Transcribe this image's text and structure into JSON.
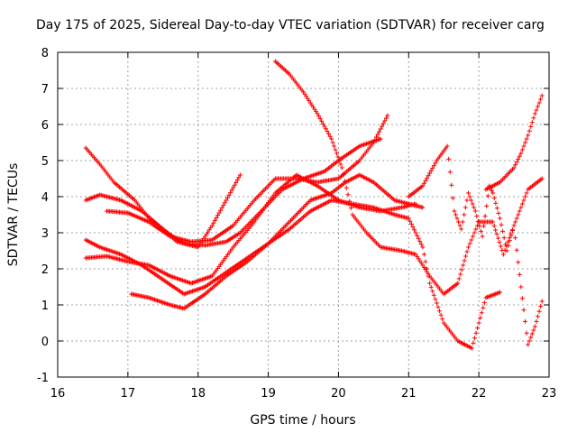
{
  "chart_data": {
    "type": "scatter",
    "title": "Day 175 of 2025, Sidereal Day-to-day VTEC variation (SDTVAR) for receiver carg",
    "xlabel": "GPS time / hours",
    "ylabel": "SDTVAR / TECUs",
    "xlim": [
      16,
      23
    ],
    "ylim": [
      -1,
      8
    ],
    "xticks": [
      16,
      17,
      18,
      19,
      20,
      21,
      22,
      23
    ],
    "yticks": [
      -1,
      0,
      1,
      2,
      3,
      4,
      5,
      6,
      7,
      8
    ],
    "grid": true,
    "marker": "+",
    "color": "#ff0000",
    "series": [
      {
        "name": "s1",
        "x": [
          16.4,
          16.6,
          16.8,
          17.1,
          17.3,
          17.6,
          17.8,
          18.1,
          18.4,
          18.6,
          18.9,
          19.2,
          19.5,
          19.8,
          20.0,
          20.3,
          20.6
        ],
        "y": [
          5.35,
          4.9,
          4.4,
          3.9,
          3.4,
          2.95,
          2.7,
          2.65,
          2.75,
          3.0,
          3.6,
          4.2,
          4.5,
          4.7,
          5.0,
          5.4,
          5.6
        ]
      },
      {
        "name": "s2",
        "x": [
          16.4,
          16.6,
          16.9,
          17.2,
          17.5,
          17.7,
          18.0,
          18.2,
          18.4,
          18.6
        ],
        "y": [
          3.9,
          4.05,
          3.9,
          3.6,
          3.1,
          2.75,
          2.6,
          3.2,
          3.9,
          4.6
        ]
      },
      {
        "name": "s3",
        "x": [
          16.7,
          17.0,
          17.3,
          17.6,
          17.9,
          18.2,
          18.5,
          18.8,
          19.1,
          19.4,
          19.7,
          20.0,
          20.3,
          20.5,
          20.7
        ],
        "y": [
          3.6,
          3.55,
          3.3,
          2.9,
          2.75,
          2.8,
          3.2,
          3.9,
          4.5,
          4.5,
          4.4,
          4.5,
          5.0,
          5.5,
          6.25
        ]
      },
      {
        "name": "s4",
        "x": [
          16.4,
          16.7,
          17.0,
          17.3,
          17.6,
          17.9,
          18.2,
          18.5,
          18.8,
          19.1,
          19.4,
          19.7,
          20.0,
          20.3,
          20.6,
          20.9,
          21.1
        ],
        "y": [
          2.3,
          2.35,
          2.2,
          2.1,
          1.8,
          1.6,
          1.8,
          2.6,
          3.3,
          4.1,
          4.6,
          4.3,
          3.9,
          3.7,
          3.6,
          3.7,
          3.8
        ]
      },
      {
        "name": "s5",
        "x": [
          16.4,
          16.6,
          16.9,
          17.2,
          17.5,
          17.8,
          18.1,
          18.4,
          18.7,
          19.0,
          19.3,
          19.6,
          19.9,
          20.2,
          20.5,
          20.8,
          21.0,
          21.2,
          21.3,
          21.5,
          21.7,
          21.9,
          22.1,
          22.3
        ],
        "y": [
          2.8,
          2.6,
          2.4,
          2.1,
          1.7,
          1.3,
          1.5,
          1.9,
          2.3,
          2.7,
          3.1,
          3.6,
          3.9,
          3.8,
          3.7,
          3.5,
          3.4,
          2.6,
          1.6,
          0.5,
          0.0,
          -0.2,
          1.2,
          1.35
        ]
      },
      {
        "name": "s6",
        "x": [
          17.05,
          17.3,
          17.6,
          17.8,
          18.1,
          18.4,
          18.7,
          19.0,
          19.3,
          19.6,
          19.9,
          20.1,
          20.3,
          20.5,
          20.8,
          21.0,
          21.2
        ],
        "y": [
          1.3,
          1.2,
          1.0,
          0.9,
          1.3,
          1.8,
          2.2,
          2.7,
          3.3,
          3.9,
          4.1,
          4.4,
          4.6,
          4.4,
          3.9,
          3.8,
          3.7
        ]
      },
      {
        "name": "s7",
        "x": [
          19.1,
          19.3,
          19.5,
          19.7,
          19.9,
          20.05,
          20.2,
          20.4,
          20.6,
          20.9,
          21.1,
          21.3,
          21.5,
          21.7,
          21.85,
          22.0,
          22.2,
          22.35,
          22.5,
          22.7,
          22.9
        ],
        "y": [
          7.75,
          7.4,
          6.9,
          6.3,
          5.6,
          4.8,
          3.5,
          3.0,
          2.6,
          2.5,
          2.4,
          1.8,
          1.3,
          1.6,
          2.6,
          3.3,
          3.3,
          2.4,
          3.2,
          4.2,
          4.5
        ]
      },
      {
        "name": "s8",
        "x": [
          21.0,
          21.2,
          21.4,
          21.55,
          21.65,
          21.75,
          21.85,
          21.95,
          22.05,
          22.15,
          22.2,
          22.3,
          22.4,
          22.5,
          22.6,
          22.7,
          22.8,
          22.9
        ],
        "y": [
          4.0,
          4.3,
          5.0,
          5.4,
          3.6,
          3.1,
          4.1,
          3.6,
          2.9,
          4.3,
          4.1,
          3.4,
          2.5,
          3.2,
          1.5,
          -0.1,
          0.4,
          1.1
        ]
      },
      {
        "name": "s9",
        "x": [
          22.1,
          22.3,
          22.5,
          22.6,
          22.7,
          22.8,
          22.9
        ],
        "y": [
          4.2,
          4.4,
          4.8,
          5.2,
          5.7,
          6.3,
          6.8
        ]
      }
    ]
  }
}
